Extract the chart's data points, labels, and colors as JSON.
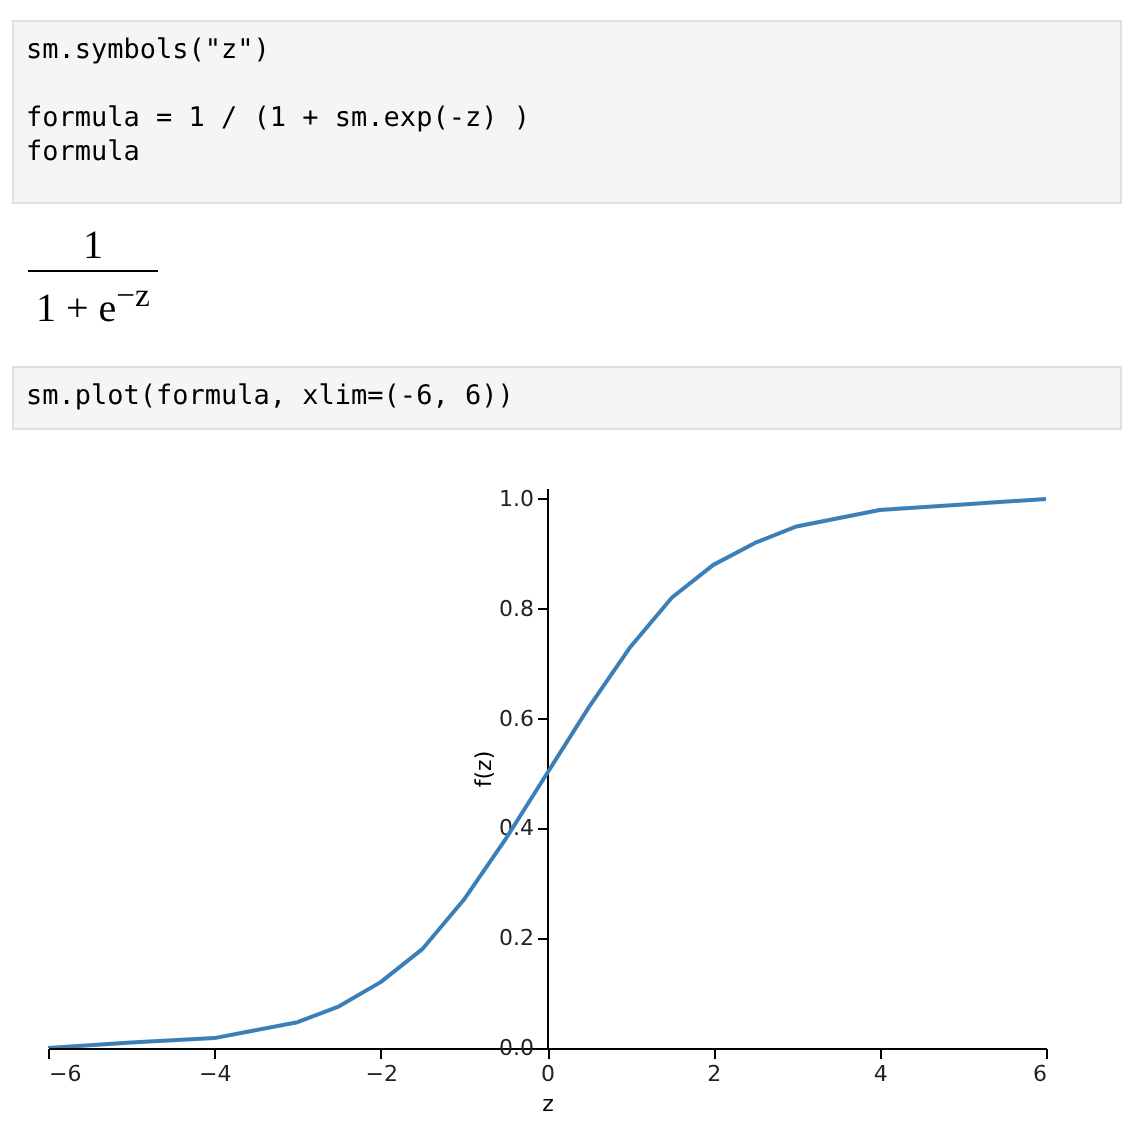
{
  "chart_data": {
    "type": "line",
    "xlabel": "z",
    "ylabel": "f(z)",
    "annotations": [
      "sm.symbols(\"z\")\n\nformula = 1 / (1 + sm.exp(-z) )\nformula",
      "1",
      "1 + e$^{−z}$",
      "sm.plot(formula, xlim=(-6, 6))"
    ],
    "x": [
      -6,
      -5,
      -4,
      -3,
      -2.5,
      -2,
      -1.5,
      -1,
      -0.5,
      0,
      0.5,
      1,
      1.5,
      2,
      2.5,
      3,
      4,
      5,
      6
    ],
    "series": [
      {
        "color": "#3b7fb6",
        "values": [
          0.0,
          0.01,
          0.018,
          0.047,
          0.076,
          0.12,
          0.18,
          0.27,
          0.38,
          0.5,
          0.62,
          0.73,
          0.82,
          0.88,
          0.92,
          0.95,
          0.98,
          0.99,
          1.0
        ]
      }
    ],
    "xlim": [
      -6,
      6
    ],
    "ylim": [
      0,
      1.02
    ],
    "xticks": [
      {
        "value": -6,
        "label": "−6"
      },
      {
        "value": -4,
        "label": "−4"
      },
      {
        "value": -2,
        "label": "−2"
      },
      0,
      2,
      4,
      6
    ],
    "yticks": [
      {
        "value": 0,
        "label": "0.0"
      },
      {
        "value": 0.2,
        "label": "0.2"
      },
      {
        "value": 0.4,
        "label": "0.4"
      },
      {
        "value": 0.6,
        "label": "0.6"
      },
      {
        "value": 0.8,
        "label": "0.8"
      },
      {
        "value": 1,
        "label": "1.0"
      }
    ],
    "grid": false,
    "marker": "none",
    "line_style": "solid"
  }
}
